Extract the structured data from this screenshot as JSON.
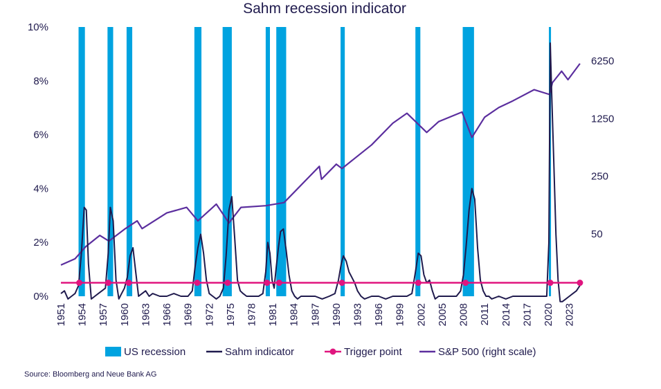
{
  "chart_data": {
    "type": "line",
    "title": "Sahm recession indicator",
    "source": "Source: Bloomberg and Neue Bank AG",
    "colors": {
      "recession": "#00a3e0",
      "sahm": "#1f1a4d",
      "trigger": "#e0157f",
      "sp500": "#5b2e9e"
    },
    "x_range": [
      1951,
      2025
    ],
    "x_ticks": [
      1951,
      1954,
      1957,
      1960,
      1963,
      1966,
      1969,
      1972,
      1975,
      1978,
      1981,
      1984,
      1987,
      1990,
      1993,
      1996,
      1999,
      2002,
      2005,
      2008,
      2011,
      2014,
      2017,
      2020,
      2023
    ],
    "x_tick_labels": [
      "1951",
      "1954",
      "1957",
      "1960",
      "1963",
      "1966",
      "1969",
      "1972",
      "1975",
      "1978",
      "1981",
      "1984",
      "1987",
      "1990",
      "1993",
      "1996",
      "1999",
      "2002",
      "2005",
      "2008",
      "2011",
      "2014",
      "2017",
      "2020",
      "2023"
    ],
    "y_left": {
      "range": [
        0,
        10
      ],
      "ticks": [
        0,
        2,
        4,
        6,
        8,
        10
      ],
      "labels": [
        "0%",
        "2%",
        "4%",
        "6%",
        "8%",
        "10%"
      ]
    },
    "y_right": {
      "label": "S&P 500 (right scale)",
      "scale": "log",
      "ticks": [
        50,
        250,
        1250,
        6250
      ],
      "labels": [
        "50",
        "250",
        "1250",
        "6250"
      ]
    },
    "recessions": [
      {
        "start": 1953.5,
        "end": 1954.4
      },
      {
        "start": 1957.6,
        "end": 1958.4
      },
      {
        "start": 1960.3,
        "end": 1961.1
      },
      {
        "start": 1969.9,
        "end": 1970.9
      },
      {
        "start": 1973.9,
        "end": 1975.2
      },
      {
        "start": 1980.0,
        "end": 1980.6
      },
      {
        "start": 1981.5,
        "end": 1982.9
      },
      {
        "start": 1990.6,
        "end": 1991.2
      },
      {
        "start": 2001.2,
        "end": 2001.9
      },
      {
        "start": 2007.9,
        "end": 2009.5
      },
      {
        "start": 2020.1,
        "end": 2020.4
      }
    ],
    "series": [
      {
        "name": "Sahm indicator",
        "axis": "left",
        "x": [
          1951.0,
          1951.5,
          1952.0,
          1952.5,
          1953.0,
          1953.5,
          1953.9,
          1954.3,
          1954.6,
          1954.9,
          1955.3,
          1955.8,
          1956.3,
          1956.8,
          1957.3,
          1957.7,
          1958.0,
          1958.4,
          1958.8,
          1959.2,
          1959.6,
          1960.0,
          1960.4,
          1960.8,
          1961.2,
          1961.6,
          1962.0,
          1962.5,
          1963.0,
          1963.5,
          1964.0,
          1965.0,
          1966.0,
          1967.0,
          1968.0,
          1969.0,
          1969.6,
          1970.0,
          1970.4,
          1970.8,
          1971.2,
          1971.6,
          1972.0,
          1972.5,
          1973.0,
          1973.5,
          1974.0,
          1974.4,
          1974.8,
          1975.2,
          1975.6,
          1976.0,
          1976.4,
          1976.8,
          1977.3,
          1978.0,
          1979.0,
          1979.6,
          1980.0,
          1980.3,
          1980.6,
          1980.9,
          1981.2,
          1981.5,
          1981.8,
          1982.1,
          1982.5,
          1982.9,
          1983.3,
          1983.7,
          1984.1,
          1984.5,
          1985.0,
          1986.0,
          1987.0,
          1988.0,
          1989.0,
          1989.8,
          1990.3,
          1990.7,
          1991.0,
          1991.4,
          1991.8,
          1992.2,
          1992.6,
          1993.0,
          1993.5,
          1994.0,
          1995.0,
          1996.0,
          1997.0,
          1998.0,
          1999.0,
          2000.0,
          2000.7,
          2001.2,
          2001.6,
          2002.0,
          2002.4,
          2002.8,
          2003.2,
          2003.6,
          2004.0,
          2004.5,
          2005.0,
          2006.0,
          2007.0,
          2007.6,
          2008.0,
          2008.4,
          2008.8,
          2009.2,
          2009.6,
          2010.0,
          2010.4,
          2010.8,
          2011.2,
          2011.6,
          2012.0,
          2013.0,
          2014.0,
          2015.0,
          2016.0,
          2017.0,
          2018.0,
          2019.0,
          2019.8,
          2020.1,
          2020.3,
          2020.5,
          2020.8,
          2021.1,
          2021.4,
          2021.7,
          2022.0,
          2022.5,
          2023.0,
          2023.5,
          2024.0,
          2024.5
        ],
        "values": [
          0.1,
          0.2,
          -0.1,
          0.0,
          0.1,
          0.4,
          1.6,
          3.3,
          3.2,
          1.2,
          -0.1,
          0.0,
          0.1,
          0.2,
          0.3,
          1.6,
          3.3,
          2.8,
          0.6,
          -0.1,
          0.1,
          0.3,
          0.7,
          1.5,
          1.8,
          0.9,
          0.0,
          0.1,
          0.2,
          0.0,
          0.1,
          0.0,
          0.0,
          0.1,
          0.0,
          0.0,
          0.2,
          1.1,
          1.8,
          2.3,
          1.6,
          0.6,
          0.1,
          0.0,
          -0.1,
          0.0,
          0.3,
          1.5,
          3.2,
          3.7,
          2.2,
          0.6,
          0.2,
          0.1,
          0.0,
          0.0,
          0.0,
          0.1,
          0.9,
          2.0,
          1.6,
          0.6,
          0.3,
          1.1,
          1.8,
          2.4,
          2.5,
          1.7,
          0.8,
          0.2,
          0.0,
          -0.1,
          0.0,
          0.0,
          0.0,
          -0.1,
          0.0,
          0.1,
          0.6,
          1.2,
          1.5,
          1.3,
          0.9,
          0.7,
          0.5,
          0.2,
          0.0,
          -0.1,
          0.0,
          0.0,
          -0.1,
          0.0,
          0.0,
          0.0,
          0.1,
          0.9,
          1.6,
          1.5,
          0.8,
          0.5,
          0.6,
          0.2,
          -0.1,
          0.0,
          0.0,
          0.0,
          0.0,
          0.2,
          0.8,
          1.9,
          3.2,
          4.0,
          3.6,
          1.8,
          0.6,
          0.2,
          0.0,
          0.0,
          -0.1,
          0.0,
          -0.1,
          0.0,
          0.0,
          0.0,
          0.0,
          0.0,
          0.0,
          2.0,
          9.4,
          7.5,
          5.0,
          2.3,
          0.6,
          -0.2,
          -0.2,
          -0.1,
          0.0,
          0.1,
          0.2,
          0.4
        ]
      },
      {
        "name": "Trigger point",
        "axis": "left",
        "value": 0.5,
        "x": [
          1953.6,
          1957.7,
          1960.6,
          1970.3,
          1974.6,
          1980.2,
          1981.9,
          1990.8,
          2001.6,
          2008.3,
          2020.3,
          2024.5
        ],
        "values": [
          0.5,
          0.5,
          0.5,
          0.5,
          0.5,
          0.5,
          0.5,
          0.5,
          0.5,
          0.5,
          0.5,
          0.5
        ]
      },
      {
        "name": "S&P 500 (right scale)",
        "axis": "right",
        "x": [
          1951.0,
          1953.0,
          1954.5,
          1956.5,
          1957.8,
          1960.0,
          1961.8,
          1962.5,
          1966.0,
          1968.8,
          1970.4,
          1973.0,
          1974.8,
          1976.5,
          1980.0,
          1982.6,
          1987.6,
          1987.9,
          1990.0,
          1990.8,
          1995.0,
          1998.0,
          2000.0,
          2002.8,
          2004.5,
          2007.8,
          2009.2,
          2011.0,
          2013.0,
          2015.0,
          2018.0,
          2020.2,
          2020.6,
          2021.9,
          2022.8,
          2024.5
        ],
        "values": [
          21,
          25,
          35,
          48,
          41,
          57,
          72,
          58,
          90,
          105,
          72,
          115,
          68,
          105,
          110,
          120,
          330,
          230,
          350,
          310,
          600,
          1100,
          1450,
          850,
          1150,
          1500,
          740,
          1300,
          1700,
          2050,
          2800,
          2450,
          3400,
          4700,
          3700,
          5800
        ]
      }
    ],
    "legend": [
      {
        "name": "US recession",
        "kind": "box"
      },
      {
        "name": "Sahm indicator",
        "kind": "line"
      },
      {
        "name": "Trigger point",
        "kind": "marker-line"
      },
      {
        "name": "S&P 500 (right scale)",
        "kind": "line"
      }
    ]
  }
}
